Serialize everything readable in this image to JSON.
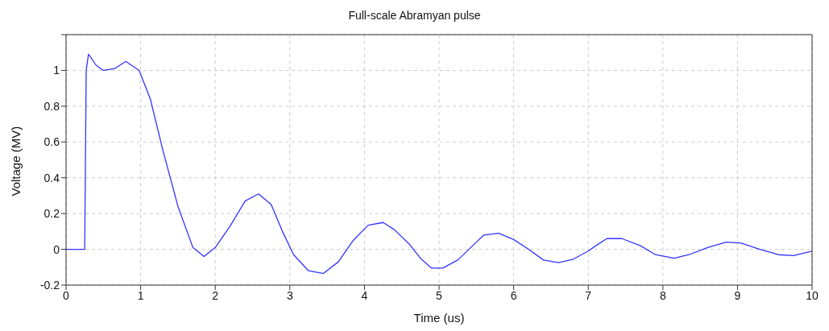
{
  "chart_data": {
    "type": "line",
    "title": "Full-scale Abramyan pulse",
    "xlabel": "Time (us)",
    "ylabel": "Voltage (MV)",
    "x": [
      0,
      0.25,
      0.27,
      0.3,
      0.32,
      0.4,
      0.5,
      0.65,
      0.8,
      0.98,
      1.13,
      1.3,
      1.5,
      1.7,
      1.85,
      2.0,
      2.2,
      2.4,
      2.58,
      2.75,
      2.9,
      3.05,
      3.25,
      3.45,
      3.65,
      3.85,
      4.05,
      4.25,
      4.4,
      4.6,
      4.75,
      4.9,
      5.05,
      5.25,
      5.45,
      5.6,
      5.8,
      6.0,
      6.2,
      6.4,
      6.6,
      6.8,
      7.0,
      7.1,
      7.25,
      7.45,
      7.7,
      7.9,
      8.15,
      8.35,
      8.6,
      8.85,
      9.05,
      9.3,
      9.55,
      9.75,
      10.0
    ],
    "series": [
      {
        "color": "#3333ff",
        "values": [
          0,
          0,
          1.0,
          1.09,
          1.08,
          1.03,
          1.0,
          1.01,
          1.05,
          1.0,
          0.84,
          0.55,
          0.24,
          0.01,
          -0.04,
          0.01,
          0.13,
          0.27,
          0.31,
          0.25,
          0.1,
          -0.03,
          -0.12,
          -0.135,
          -0.07,
          0.05,
          0.135,
          0.15,
          0.11,
          0.03,
          -0.05,
          -0.105,
          -0.105,
          -0.06,
          0.02,
          0.08,
          0.09,
          0.055,
          0.0,
          -0.06,
          -0.075,
          -0.055,
          -0.01,
          0.02,
          0.06,
          0.06,
          0.02,
          -0.03,
          -0.05,
          -0.03,
          0.01,
          0.04,
          0.035,
          0.0,
          -0.03,
          -0.035,
          -0.01
        ]
      }
    ],
    "xlim": [
      0,
      10
    ],
    "xticks": [
      0,
      1,
      2,
      3,
      4,
      5,
      6,
      7,
      8,
      9,
      10
    ],
    "ylim": [
      -0.2,
      1.2
    ],
    "yticks": [
      -0.2,
      0,
      0.2,
      0.4,
      0.6,
      0.8,
      1,
      {
        "value": 1.2,
        "label": null
      }
    ],
    "grid": true,
    "marker": "none",
    "line_style": "solid"
  }
}
